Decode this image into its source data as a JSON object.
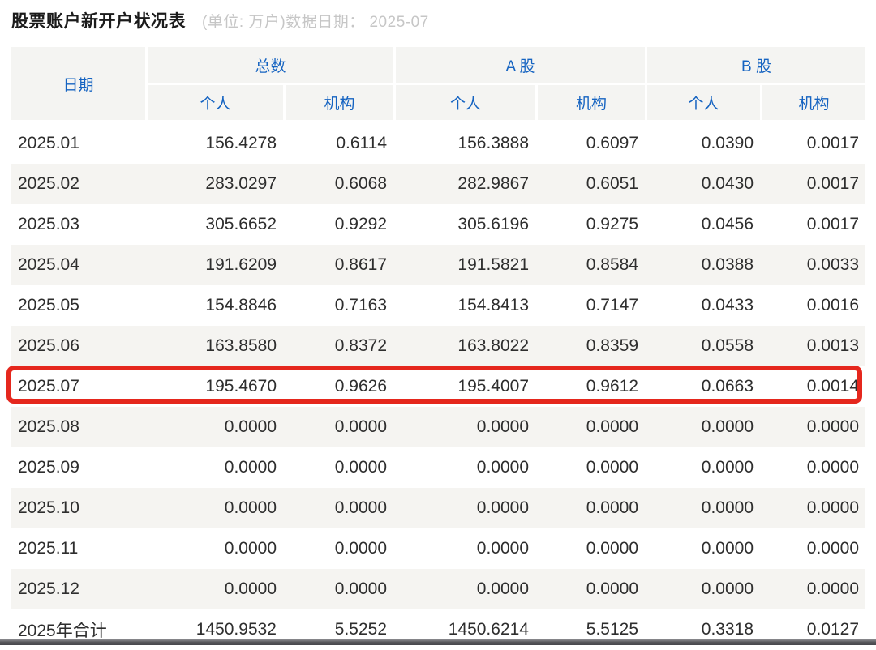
{
  "header": {
    "title": "股票账户新开户状况表",
    "subtitle": "(单位: 万户)数据日期： 2025-07"
  },
  "table": {
    "date_header": "日期",
    "groups": [
      {
        "label": "总数",
        "sub": [
          "个人",
          "机构"
        ]
      },
      {
        "label": "A 股",
        "sub": [
          "个人",
          "机构"
        ]
      },
      {
        "label": "B 股",
        "sub": [
          "个人",
          "机构"
        ]
      }
    ],
    "rows": [
      {
        "date": "2025.01",
        "values": [
          "156.4278",
          "0.6114",
          "156.3888",
          "0.6097",
          "0.0390",
          "0.0017"
        ],
        "highlight": false
      },
      {
        "date": "2025.02",
        "values": [
          "283.0297",
          "0.6068",
          "282.9867",
          "0.6051",
          "0.0430",
          "0.0017"
        ],
        "highlight": false
      },
      {
        "date": "2025.03",
        "values": [
          "305.6652",
          "0.9292",
          "305.6196",
          "0.9275",
          "0.0456",
          "0.0017"
        ],
        "highlight": false
      },
      {
        "date": "2025.04",
        "values": [
          "191.6209",
          "0.8617",
          "191.5821",
          "0.8584",
          "0.0388",
          "0.0033"
        ],
        "highlight": false
      },
      {
        "date": "2025.05",
        "values": [
          "154.8846",
          "0.7163",
          "154.8413",
          "0.7147",
          "0.0433",
          "0.0016"
        ],
        "highlight": false
      },
      {
        "date": "2025.06",
        "values": [
          "163.8580",
          "0.8372",
          "163.8022",
          "0.8359",
          "0.0558",
          "0.0013"
        ],
        "highlight": false
      },
      {
        "date": "2025.07",
        "values": [
          "195.4670",
          "0.9626",
          "195.4007",
          "0.9612",
          "0.0663",
          "0.0014"
        ],
        "highlight": true
      },
      {
        "date": "2025.08",
        "values": [
          "0.0000",
          "0.0000",
          "0.0000",
          "0.0000",
          "0.0000",
          "0.0000"
        ],
        "highlight": false
      },
      {
        "date": "2025.09",
        "values": [
          "0.0000",
          "0.0000",
          "0.0000",
          "0.0000",
          "0.0000",
          "0.0000"
        ],
        "highlight": false
      },
      {
        "date": "2025.10",
        "values": [
          "0.0000",
          "0.0000",
          "0.0000",
          "0.0000",
          "0.0000",
          "0.0000"
        ],
        "highlight": false
      },
      {
        "date": "2025.11",
        "values": [
          "0.0000",
          "0.0000",
          "0.0000",
          "0.0000",
          "0.0000",
          "0.0000"
        ],
        "highlight": false
      },
      {
        "date": "2025.12",
        "values": [
          "0.0000",
          "0.0000",
          "0.0000",
          "0.0000",
          "0.0000",
          "0.0000"
        ],
        "highlight": false
      },
      {
        "date": "2025年合计",
        "values": [
          "1450.9532",
          "5.5252",
          "1450.6214",
          "5.5125",
          "0.3318",
          "0.0127"
        ],
        "highlight": false
      }
    ]
  },
  "colors": {
    "header_blue": "#1563c1",
    "highlight_red": "#e5271d",
    "stripe_gray": "#f5f4f1"
  }
}
